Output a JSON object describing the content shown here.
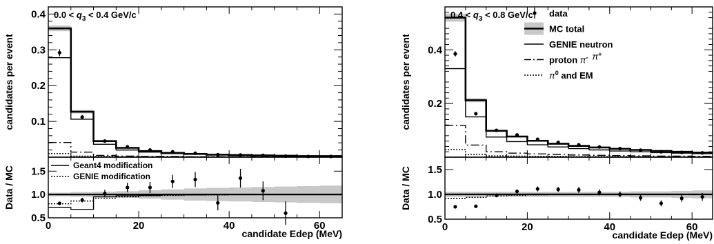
{
  "chart_data": [
    {
      "panel": "left",
      "type": "histogram",
      "range_label": {
        "pre": "0.0 < ",
        "var": "q",
        "sub": "3",
        "post": " < 0.4 GeV/c"
      },
      "x_label": "candidate Edep (MeV)",
      "x_ticks": [
        "0",
        "20",
        "40",
        "60"
      ],
      "xlim": [
        0,
        65
      ],
      "bins": [
        0,
        5,
        10,
        15,
        20,
        25,
        30,
        35,
        40,
        45,
        50,
        55,
        60,
        65
      ],
      "top": {
        "ylabel": "candidates per event",
        "ylim": [
          0,
          0.42
        ],
        "y_ticks": [
          "0.1",
          "0.2",
          "0.3",
          "0.4"
        ],
        "y_tick_values": [
          0.1,
          0.2,
          0.3,
          0.4
        ],
        "mc_band": {
          "lo": [
            0.352,
            0.122,
            0.043,
            0.024,
            0.016,
            0.011,
            0.008,
            0.006,
            0.005,
            0.004,
            0.003,
            0.003,
            0.002
          ],
          "hi": [
            0.368,
            0.132,
            0.047,
            0.028,
            0.019,
            0.013,
            0.01,
            0.008,
            0.006,
            0.005,
            0.004,
            0.004,
            0.003
          ]
        },
        "mc_total": [
          0.36,
          0.127,
          0.045,
          0.026,
          0.017,
          0.012,
          0.009,
          0.007,
          0.006,
          0.005,
          0.004,
          0.003,
          0.003
        ],
        "genie_neutron": [
          0.278,
          0.106,
          0.036,
          0.02,
          0.014,
          0.01,
          0.008,
          0.006,
          0.005,
          0.004,
          0.003,
          0.003,
          0.002
        ],
        "proton_pi": [
          0.041,
          0.014,
          0.005,
          0.003,
          0.002,
          0.002,
          0.001,
          0.001,
          0.001,
          0.001,
          0.001,
          0.001,
          0.001
        ],
        "pi0_em": [
          0.01,
          0.003,
          0.002,
          0.001,
          0.001,
          0.001,
          0.001,
          0.001,
          0.001,
          0.001,
          0.001,
          0.001,
          0.001
        ],
        "data": {
          "x": [
            2.5,
            7.5,
            12.5,
            17.5,
            22.5,
            27.5,
            32.5,
            37.5,
            42.5,
            47.5,
            52.5,
            57.5,
            62.5
          ],
          "y": [
            0.292,
            0.112,
            0.045,
            0.029,
            0.02,
            0.015,
            0.011,
            0.007,
            0.006,
            0.005,
            0.003,
            0.002,
            0.002
          ],
          "err": [
            0.01,
            0.006,
            0.004,
            0.003,
            0.003,
            0.002,
            0.002,
            0.002,
            0.002,
            0.002,
            0.001,
            0.001,
            0.001
          ]
        }
      },
      "ratio": {
        "ylabel": "Data / MC",
        "ylim": [
          0.5,
          1.8
        ],
        "y_ticks": [
          "0.5",
          "1.0",
          "1.5"
        ],
        "y_tick_values": [
          0.5,
          1.0,
          1.5
        ],
        "band_halfwidth": [
          0.04,
          0.05,
          0.06,
          0.07,
          0.09,
          0.11,
          0.13,
          0.14,
          0.15,
          0.16,
          0.17,
          0.18,
          0.19
        ],
        "geant4_mod": [
          0.72,
          0.68,
          0.95,
          0.97,
          0.98,
          0.99,
          0.99,
          1.0,
          1.0,
          1.0,
          1.0,
          1.0,
          1.0
        ],
        "genie_mod": [
          0.8,
          0.86,
          0.92,
          0.95,
          0.97,
          0.98,
          0.99,
          0.99,
          1.0,
          1.0,
          1.0,
          1.0,
          1.0
        ],
        "data": {
          "x": [
            2.5,
            7.5,
            12.5,
            17.5,
            22.5,
            27.5,
            32.5,
            37.5,
            42.5,
            47.5,
            52.5
          ],
          "y": [
            0.81,
            0.88,
            1.02,
            1.15,
            1.15,
            1.28,
            1.32,
            0.82,
            1.35,
            1.08,
            0.6
          ],
          "err": [
            0.03,
            0.05,
            0.08,
            0.1,
            0.12,
            0.14,
            0.16,
            0.16,
            0.2,
            0.2,
            0.25
          ]
        },
        "legend": [
          {
            "label": "Geant4 modification",
            "style": "solid"
          },
          {
            "label": "GENIE modification",
            "style": "dotted"
          }
        ]
      }
    },
    {
      "panel": "right",
      "type": "histogram",
      "range_label": {
        "pre": "0.4 < ",
        "var": "q",
        "sub": "3",
        "post": " < 0.8 GeV/c"
      },
      "x_label": "candidate Edep (MeV)",
      "x_ticks": [
        "0",
        "20",
        "40",
        "60"
      ],
      "xlim": [
        0,
        65
      ],
      "bins": [
        0,
        5,
        10,
        15,
        20,
        25,
        30,
        35,
        40,
        45,
        50,
        55,
        60,
        65
      ],
      "top": {
        "ylabel": "candidates per event",
        "ylim": [
          0,
          0.56
        ],
        "y_ticks": [
          "0.2",
          "0.4"
        ],
        "y_tick_values": [
          0.2,
          0.4
        ],
        "mc_band": {
          "lo": [
            0.505,
            0.205,
            0.095,
            0.074,
            0.058,
            0.048,
            0.04,
            0.034,
            0.029,
            0.025,
            0.021,
            0.018,
            0.015
          ],
          "hi": [
            0.535,
            0.22,
            0.102,
            0.08,
            0.064,
            0.053,
            0.045,
            0.038,
            0.032,
            0.028,
            0.024,
            0.021,
            0.018
          ]
        },
        "mc_total": [
          0.52,
          0.212,
          0.098,
          0.077,
          0.061,
          0.05,
          0.042,
          0.036,
          0.031,
          0.027,
          0.023,
          0.02,
          0.017
        ],
        "genie_neutron": [
          0.33,
          0.15,
          0.075,
          0.058,
          0.046,
          0.038,
          0.032,
          0.027,
          0.023,
          0.02,
          0.017,
          0.015,
          0.013
        ],
        "proton_pi": [
          0.118,
          0.045,
          0.02,
          0.015,
          0.012,
          0.01,
          0.008,
          0.007,
          0.006,
          0.005,
          0.004,
          0.004,
          0.003
        ],
        "pi0_em": [
          0.028,
          0.01,
          0.005,
          0.004,
          0.003,
          0.003,
          0.002,
          0.002,
          0.002,
          0.002,
          0.001,
          0.001,
          0.001
        ],
        "data": {
          "x": [
            2.5,
            7.5,
            12.5,
            17.5,
            22.5,
            27.5,
            32.5,
            37.5,
            42.5,
            47.5,
            52.5,
            57.5,
            62.5
          ],
          "y": [
            0.385,
            0.162,
            0.1,
            0.083,
            0.067,
            0.055,
            0.046,
            0.038,
            0.032,
            0.026,
            0.02,
            0.018,
            0.016
          ],
          "err": [
            0.01,
            0.006,
            0.005,
            0.004,
            0.004,
            0.003,
            0.003,
            0.003,
            0.002,
            0.002,
            0.002,
            0.002,
            0.002
          ]
        }
      },
      "ratio": {
        "ylabel": "Data / MC",
        "ylim": [
          0.5,
          1.75
        ],
        "y_ticks": [
          "0.5",
          "1.0",
          "1.5"
        ],
        "y_tick_values": [
          0.5,
          1.0,
          1.5
        ],
        "band_halfwidth": [
          0.05,
          0.05,
          0.05,
          0.05,
          0.05,
          0.05,
          0.05,
          0.05,
          0.05,
          0.06,
          0.06,
          0.07,
          0.08
        ],
        "geant4_mod": [
          1.0,
          1.0,
          1.0,
          1.0,
          1.0,
          1.0,
          1.0,
          1.0,
          1.0,
          1.0,
          1.0,
          1.0,
          1.0
        ],
        "genie_mod": [
          0.92,
          0.94,
          0.97,
          0.98,
          0.99,
          1.0,
          1.0,
          1.0,
          1.0,
          1.0,
          1.0,
          1.0,
          1.0
        ],
        "data": {
          "x": [
            2.5,
            7.5,
            12.5,
            17.5,
            22.5,
            27.5,
            32.5,
            37.5,
            42.5,
            47.5,
            52.5,
            57.5,
            62.5
          ],
          "y": [
            0.75,
            0.76,
            0.98,
            1.06,
            1.11,
            1.1,
            1.09,
            1.04,
            1.0,
            0.93,
            0.82,
            0.92,
            0.95
          ],
          "err": [
            0.02,
            0.03,
            0.04,
            0.04,
            0.05,
            0.05,
            0.06,
            0.06,
            0.06,
            0.06,
            0.06,
            0.07,
            0.08
          ]
        }
      },
      "legend": [
        {
          "label": "data",
          "style": "marker"
        },
        {
          "label": "MC total",
          "style": "band"
        },
        {
          "label": "GENIE neutron",
          "style": "solid"
        },
        {
          "label": "proton ",
          "extra": [
            {
              "sym": "π",
              "sup": "-"
            },
            {
              "sym": "π",
              "sup": "+"
            }
          ],
          "style": "dashdot"
        },
        {
          "label": " and EM",
          "pre": {
            "sym": "π",
            "sup": "0"
          },
          "style": "dotted"
        }
      ]
    }
  ]
}
